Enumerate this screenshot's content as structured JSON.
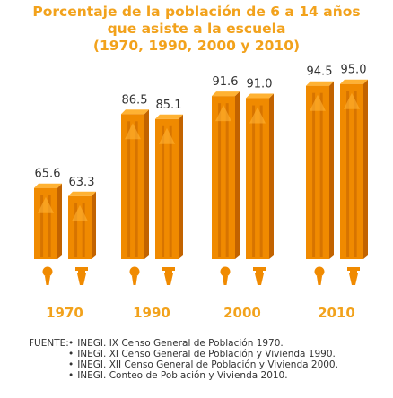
{
  "title_lines": [
    "Porcentaje de la población de 6 a 14 años",
    "que asiste a la escuela",
    "(1970, 1990, 2000 y 2010)"
  ],
  "colors": {
    "title": "#f2a21c",
    "pencil_body": "#f08a00",
    "pencil_dark": "#c26300",
    "pencil_light": "#ffb233",
    "year": "#f2a21c",
    "value": "#333333"
  },
  "icons": {
    "female": "female-figure-icon",
    "male": "male-figure-icon"
  },
  "chart_data": {
    "type": "bar",
    "categories": [
      "1970",
      "1990",
      "2000",
      "2010"
    ],
    "series": [
      {
        "values": [
          65.6,
          86.5,
          91.6,
          94.5
        ]
      },
      {
        "values": [
          63.3,
          85.1,
          91.0,
          95.0
        ]
      }
    ],
    "value_labels": [
      [
        "65.6",
        "63.3"
      ],
      [
        "86.5",
        "85.1"
      ],
      [
        "91.6",
        "91.0"
      ],
      [
        "94.5",
        "95.0"
      ]
    ]
  },
  "source": {
    "label": "FUENTE:",
    "items": [
      "INEGI. IX Censo General de Población 1970.",
      "INEGI. XI Censo General de Población y Vivienda 1990.",
      "INEGI. XII Censo General de Población y Vivienda 2000.",
      "INEGI. Conteo de Población y Vivienda 2010."
    ]
  }
}
